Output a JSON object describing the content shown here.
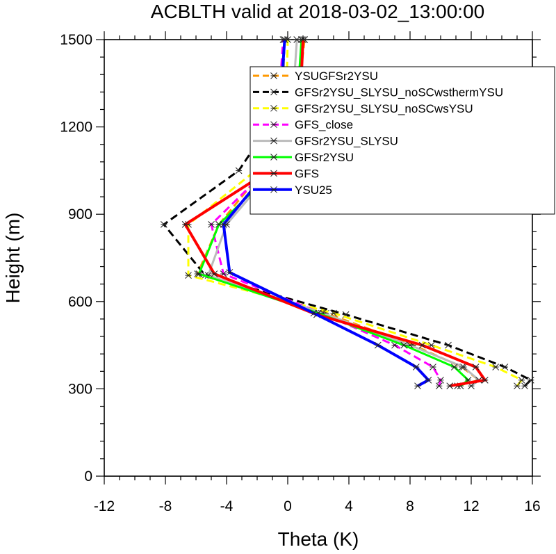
{
  "chart_data": {
    "type": "line",
    "title": "ACBLTH valid at 2018-03-02_13:00:00",
    "xlabel": "Theta (K)",
    "ylabel": "Height (m)",
    "xlim": [
      -12,
      16
    ],
    "ylim": [
      0,
      1500
    ],
    "xticks": [
      -12,
      -8,
      -4,
      0,
      4,
      8,
      12,
      16
    ],
    "yticks": [
      0,
      300,
      600,
      900,
      1200,
      1500
    ],
    "grid": false,
    "legend": "top-right",
    "series": [
      {
        "name": "YSUGFSr2YSU",
        "color": "#ff9900",
        "dash": "dash",
        "marker": true,
        "points": [
          [
            11.1,
            310
          ],
          [
            12.5,
            330
          ],
          [
            11.4,
            375
          ],
          [
            8.2,
            450
          ],
          [
            2.5,
            560
          ],
          [
            -5.9,
            695
          ],
          [
            -4.5,
            865
          ],
          [
            -1.6,
            1050
          ],
          [
            0.6,
            1270
          ],
          [
            1.1,
            1500
          ]
        ]
      },
      {
        "name": "GFSr2YSU_SLYSU_noSCwsthermYSU",
        "color": "#000000",
        "dash": "dash",
        "marker": true,
        "points": [
          [
            15.5,
            310
          ],
          [
            15.9,
            330
          ],
          [
            14.2,
            375
          ],
          [
            10.5,
            450
          ],
          [
            3.8,
            555
          ],
          [
            -5.4,
            690
          ],
          [
            -8.1,
            865
          ],
          [
            -3.2,
            1050
          ],
          [
            -0.4,
            1270
          ],
          [
            -0.2,
            1500
          ]
        ]
      },
      {
        "name": "GFSr2YSU_SLYSU_noSCwsYSU",
        "color": "#ffff00",
        "dash": "dash",
        "marker": true,
        "points": [
          [
            15.0,
            310
          ],
          [
            15.3,
            330
          ],
          [
            13.6,
            375
          ],
          [
            9.4,
            450
          ],
          [
            3.0,
            560
          ],
          [
            -6.5,
            690
          ],
          [
            -6.5,
            865
          ],
          [
            -2.1,
            1050
          ],
          [
            -0.1,
            1270
          ],
          [
            0.0,
            1500
          ]
        ]
      },
      {
        "name": "GFS_close",
        "color": "#ff00ff",
        "dash": "dash",
        "marker": true,
        "points": [
          [
            9.9,
            310
          ],
          [
            10.0,
            330
          ],
          [
            9.5,
            375
          ],
          [
            7.0,
            450
          ],
          [
            2.2,
            560
          ],
          [
            -4.2,
            695
          ],
          [
            -5.0,
            865
          ],
          [
            -1.4,
            1050
          ],
          [
            -0.6,
            1270
          ],
          [
            -0.3,
            1500
          ]
        ]
      },
      {
        "name": "GFSr2YSU_SLYSU",
        "color": "#bbbbbb",
        "dash": "solid",
        "marker": true,
        "points": [
          [
            12.0,
            310
          ],
          [
            12.5,
            330
          ],
          [
            11.5,
            375
          ],
          [
            8.0,
            450
          ],
          [
            2.3,
            560
          ],
          [
            -5.2,
            690
          ],
          [
            -4.0,
            865
          ],
          [
            -1.0,
            1050
          ],
          [
            0.3,
            1270
          ],
          [
            0.6,
            1500
          ]
        ]
      },
      {
        "name": "GFSr2YSU",
        "color": "#00ff00",
        "dash": "solid",
        "marker": true,
        "points": [
          [
            11.3,
            310
          ],
          [
            11.8,
            330
          ],
          [
            10.9,
            375
          ],
          [
            7.6,
            450
          ],
          [
            2.0,
            560
          ],
          [
            -5.8,
            695
          ],
          [
            -4.5,
            865
          ],
          [
            -0.9,
            1050
          ],
          [
            0.6,
            1270
          ],
          [
            0.9,
            1500
          ]
        ]
      },
      {
        "name": "GFS",
        "color": "#ff0000",
        "dash": "solid",
        "marker": true,
        "points": [
          [
            10.6,
            310
          ],
          [
            12.9,
            330
          ],
          [
            12.3,
            375
          ],
          [
            8.8,
            450
          ],
          [
            1.9,
            555
          ],
          [
            -4.8,
            695
          ],
          [
            -6.7,
            865
          ],
          [
            -1.2,
            1050
          ],
          [
            0.8,
            1270
          ],
          [
            1.0,
            1500
          ]
        ]
      },
      {
        "name": "YSU25",
        "color": "#0000ff",
        "dash": "solid",
        "marker": true,
        "points": [
          [
            8.5,
            310
          ],
          [
            9.2,
            330
          ],
          [
            8.4,
            375
          ],
          [
            5.9,
            450
          ],
          [
            1.7,
            560
          ],
          [
            -3.8,
            700
          ],
          [
            -4.2,
            865
          ],
          [
            -1.3,
            1050
          ],
          [
            -0.5,
            1270
          ],
          [
            -0.2,
            1500
          ]
        ]
      }
    ]
  }
}
